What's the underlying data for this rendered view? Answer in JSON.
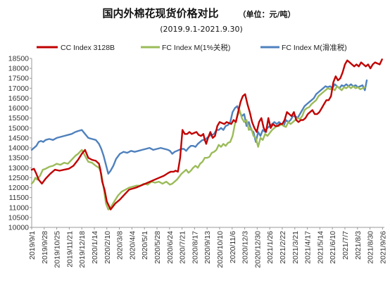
{
  "chart_data": {
    "type": "line",
    "title": "国内外棉花现货价格对比",
    "unit_label": "（单位：元/吨）",
    "subtitle": "(2019.9.1-2021.9.30)",
    "ylim": [
      10000,
      18500
    ],
    "yticks": [
      "10000",
      "10500",
      "11000",
      "11500",
      "12000",
      "12500",
      "13000",
      "13500",
      "14000",
      "14500",
      "15000",
      "15500",
      "16000",
      "16500",
      "17000",
      "17500",
      "18000",
      "18500"
    ],
    "xlim_days": [
      0,
      760
    ],
    "xtick_labels": [
      "2019/9/1",
      "2019/9/28",
      "2019/10/25",
      "2019/11/21",
      "2019/12/18",
      "2020/1/14",
      "2020/2/10",
      "2020/3/8",
      "2020/4/4",
      "2020/5/1",
      "2020/5/28",
      "2020/6/24",
      "2020/7/21",
      "2020/8/17",
      "2020/9/13",
      "2020/10/10",
      "2020/11/6",
      "2020/12/3",
      "2020/12/30",
      "2021/1/26",
      "2021/2/22",
      "2021/3/21",
      "2021/4/17",
      "2021/5/14",
      "2021/6/10",
      "2021/7/7",
      "2021/8/3",
      "2021/8/30",
      "2021/9/26"
    ],
    "grid": false,
    "legend_position": "top",
    "series": [
      {
        "name": "CC Index 3128B",
        "color": "#c00000",
        "x": [
          0,
          5,
          10,
          15,
          22,
          30,
          40,
          50,
          60,
          70,
          80,
          90,
          100,
          108,
          115,
          122,
          130,
          138,
          145,
          148,
          152,
          157,
          162,
          170,
          180,
          190,
          200,
          210,
          225,
          240,
          255,
          270,
          285,
          295,
          300,
          303,
          306,
          310,
          315,
          320,
          325,
          330,
          335,
          340,
          345,
          350,
          355,
          360,
          365,
          370,
          373,
          376,
          380,
          385,
          390,
          395,
          400,
          405,
          410,
          415,
          420,
          425,
          430,
          435,
          440,
          445,
          450,
          455,
          460,
          465,
          470,
          475,
          480,
          485,
          490,
          495,
          500,
          505,
          510,
          515,
          520,
          525,
          530,
          535,
          540,
          545,
          550,
          555,
          560,
          565,
          570,
          575,
          580,
          585,
          590,
          595,
          600,
          605,
          610,
          615,
          620,
          625,
          630,
          635,
          640,
          645,
          650,
          655,
          660,
          665,
          670,
          675,
          680,
          685,
          690,
          695,
          700,
          705,
          710,
          715,
          720,
          725,
          730,
          735,
          740,
          745,
          750,
          755
        ],
        "y": [
          12900,
          12950,
          12700,
          12400,
          12200,
          12450,
          12700,
          12900,
          12850,
          12900,
          12950,
          13100,
          13400,
          13700,
          13900,
          13500,
          13400,
          13350,
          13200,
          12900,
          12300,
          11900,
          11300,
          10900,
          11200,
          11400,
          11650,
          11900,
          12000,
          12150,
          12300,
          12450,
          12600,
          12750,
          12800,
          12800,
          12800,
          12850,
          12800,
          13500,
          14900,
          14700,
          14700,
          14800,
          14700,
          14750,
          14800,
          14650,
          14600,
          14700,
          14400,
          14200,
          14500,
          14800,
          14500,
          14600,
          15100,
          15300,
          15250,
          15200,
          15300,
          15250,
          15200,
          15400,
          15300,
          15800,
          16300,
          16600,
          16700,
          16200,
          15800,
          15300,
          15000,
          14800,
          15300,
          15500,
          15000,
          14800,
          15500,
          15000,
          15200,
          15100,
          15100,
          15200,
          15200,
          15400,
          15800,
          15700,
          15600,
          15800,
          15400,
          15300,
          15400,
          15400,
          15500,
          15700,
          15800,
          15900,
          15700,
          15700,
          15800,
          16000,
          16200,
          16400,
          16400,
          16600,
          17300,
          17600,
          17400,
          17500,
          17800,
          18200,
          18400,
          18300,
          18200,
          18100,
          18200,
          18100,
          18300,
          18200,
          18100,
          18200,
          18000,
          18200,
          18300,
          18250,
          18200,
          18450
        ]
      },
      {
        "name": "FC Index M(1%关税)",
        "color": "#9bbb59",
        "x": [
          0,
          4,
          8,
          12,
          18,
          24,
          30,
          38,
          46,
          54,
          62,
          70,
          78,
          86,
          94,
          100,
          108,
          115,
          122,
          130,
          138,
          145,
          150,
          155,
          160,
          165,
          170,
          178,
          186,
          194,
          202,
          210,
          218,
          226,
          234,
          242,
          250,
          258,
          266,
          274,
          282,
          290,
          298,
          303,
          308,
          313,
          318,
          323,
          328,
          333,
          338,
          343,
          348,
          353,
          358,
          363,
          368,
          373,
          378,
          383,
          388,
          393,
          398,
          403,
          408,
          413,
          418,
          423,
          428,
          433,
          438,
          443,
          448,
          453,
          458,
          463,
          468,
          473,
          478,
          483,
          488,
          493,
          498,
          503,
          508,
          513,
          518,
          523,
          528,
          533,
          538,
          543,
          548,
          553,
          558,
          563,
          568,
          573,
          578,
          583,
          588,
          593,
          598,
          603,
          608,
          613,
          618,
          623,
          628,
          633,
          638,
          643,
          648,
          653,
          658,
          663,
          668,
          673,
          678,
          683,
          688,
          693,
          698,
          703,
          708,
          713,
          718
        ],
        "y": [
          12200,
          12300,
          12500,
          12400,
          12600,
          12900,
          12950,
          13050,
          13100,
          13200,
          13150,
          13250,
          13200,
          13400,
          13600,
          13700,
          13900,
          13600,
          13300,
          13250,
          13100,
          13000,
          12700,
          12000,
          11200,
          10900,
          11000,
          11300,
          11600,
          11800,
          11900,
          12000,
          12050,
          12100,
          12100,
          12200,
          12150,
          12300,
          12250,
          12300,
          12200,
          12300,
          12150,
          12200,
          12300,
          12400,
          12550,
          12700,
          12800,
          12900,
          12750,
          12850,
          13000,
          13100,
          13000,
          13200,
          13300,
          13500,
          13500,
          13550,
          13750,
          13800,
          13900,
          14150,
          14050,
          14200,
          14100,
          14250,
          14300,
          14600,
          15200,
          15600,
          15900,
          15500,
          15300,
          15400,
          14900,
          15000,
          14600,
          14500,
          14050,
          14500,
          14400,
          14700,
          14600,
          14750,
          14900,
          15000,
          15100,
          15100,
          15200,
          15100,
          15050,
          15300,
          15200,
          15300,
          15400,
          15500,
          15450,
          15600,
          15900,
          16000,
          16050,
          16200,
          16300,
          16400,
          16600,
          16700,
          16800,
          16900,
          17000,
          16950,
          17000,
          16900,
          17100,
          17000,
          16900,
          17050,
          17000,
          17100,
          17000,
          17100,
          17000,
          17050,
          16950,
          17000,
          17050
        ]
      },
      {
        "name": "FC Index M(滑准税)",
        "color": "#4f81bd",
        "x": [
          0,
          5,
          10,
          15,
          20,
          25,
          30,
          38,
          46,
          54,
          62,
          70,
          78,
          86,
          94,
          100,
          108,
          115,
          122,
          130,
          138,
          145,
          150,
          155,
          160,
          165,
          170,
          176,
          182,
          190,
          198,
          206,
          214,
          222,
          230,
          238,
          246,
          254,
          262,
          270,
          278,
          286,
          294,
          298,
          303,
          308,
          313,
          318,
          323,
          328,
          333,
          338,
          343,
          348,
          353,
          358,
          363,
          368,
          373,
          378,
          383,
          388,
          393,
          398,
          403,
          408,
          413,
          418,
          423,
          428,
          433,
          438,
          443,
          448,
          453,
          458,
          463,
          468,
          473,
          478,
          483,
          488,
          493,
          498,
          503,
          508,
          513,
          518,
          523,
          528,
          533,
          538,
          543,
          548,
          553,
          558,
          563,
          568,
          573,
          578,
          583,
          588,
          593,
          598,
          603,
          608,
          613,
          618,
          623,
          628,
          633,
          638,
          643,
          648,
          653,
          658,
          663,
          668,
          673,
          678,
          683,
          688,
          693,
          698,
          703,
          708,
          713,
          718,
          722
        ],
        "y": [
          13900,
          14000,
          14100,
          14300,
          14350,
          14300,
          14400,
          14450,
          14400,
          14500,
          14550,
          14600,
          14650,
          14700,
          14800,
          14850,
          14900,
          14700,
          14500,
          14450,
          14400,
          14200,
          13950,
          13600,
          13150,
          12700,
          12850,
          13100,
          13450,
          13700,
          13800,
          13750,
          13850,
          13800,
          13850,
          13900,
          13950,
          14000,
          13900,
          13950,
          14000,
          13950,
          13900,
          13850,
          13700,
          13800,
          13850,
          13900,
          13950,
          13950,
          13850,
          14000,
          14100,
          14100,
          14050,
          14200,
          14300,
          14400,
          14400,
          14500,
          14600,
          14650,
          14700,
          14900,
          14900,
          15000,
          14900,
          15100,
          15150,
          15300,
          15800,
          16000,
          16100,
          15800,
          15600,
          15700,
          15100,
          15300,
          14900,
          14800,
          14300,
          14800,
          14600,
          14900,
          14800,
          15000,
          15100,
          15200,
          15300,
          15200,
          15300,
          15200,
          15100,
          15400,
          15300,
          15400,
          15600,
          15600,
          15500,
          15700,
          15900,
          16100,
          16200,
          16300,
          16400,
          16500,
          16700,
          16800,
          16900,
          17000,
          17100,
          17050,
          17100,
          17000,
          17200,
          17100,
          17000,
          17150,
          17100,
          17200,
          17100,
          17200,
          17100,
          17150,
          17050,
          17100,
          17150,
          16900,
          17400
        ]
      }
    ]
  }
}
